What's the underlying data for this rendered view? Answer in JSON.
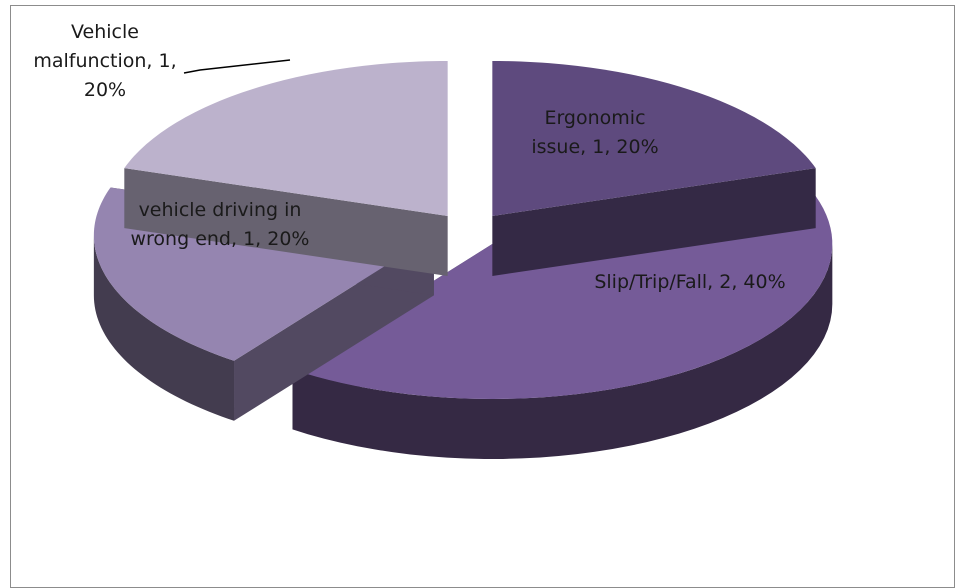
{
  "chart_data": {
    "type": "pie3d",
    "values": [
      1,
      2,
      1,
      1
    ],
    "value_labels": [
      "Ergonomic issue, 1, 20%",
      "Slip/Trip/Fall, 2, 40%",
      "vehicle driving in wrong end, 1, 20%",
      "Vehicle malfunction, 1, 20%"
    ],
    "colors": [
      "#5e4a7e",
      "#755b98",
      "#9585b0",
      "#bcb2cc"
    ],
    "explode": true
  }
}
